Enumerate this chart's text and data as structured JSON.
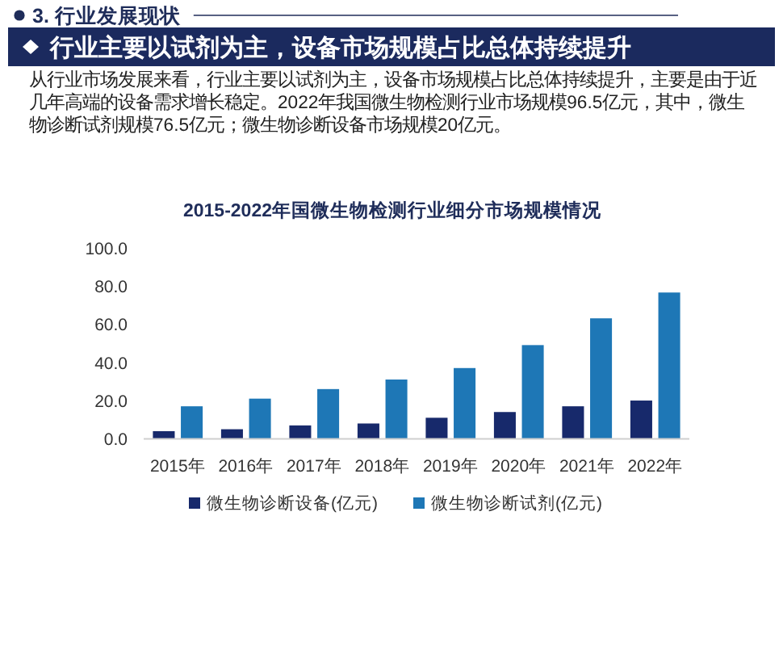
{
  "chart_data": {
    "type": "bar",
    "title": "2015-2022年国微生物检测行业细分市场规模情况",
    "annotations": [
      "3. 行业发展现状",
      "行业主要以试剂为主，设备市场规模占比总体持续提升",
      "从行业市场发展来看，行业主要以试剂为主，设备市场规模占比总体持续提升，主要是由于近几年高端的设备需求增长稳定。2022年我国微生物检测行业市场规模96.5亿元，其中，微生物诊断试剂规模76.5亿元；微生物诊断设备市场规模20亿元。"
    ],
    "categories": [
      "2015年",
      "2016年",
      "2017年",
      "2018年",
      "2019年",
      "2020年",
      "2021年",
      "2022年"
    ],
    "series": [
      {
        "name": "微生物诊断设备(亿元)",
        "color": "#17296b",
        "values": [
          4,
          5,
          7,
          8,
          11,
          14,
          17,
          20
        ]
      },
      {
        "name": "微生物诊断试剂(亿元)",
        "color": "#1e77b6",
        "values": [
          17,
          21,
          26,
          31,
          37,
          49,
          63,
          76.5
        ]
      }
    ],
    "ylim": [
      0,
      100
    ],
    "yticks": [
      {
        "value": 0,
        "label": "0.0"
      },
      {
        "value": 20,
        "label": "20.0"
      },
      {
        "value": 40,
        "label": "40.0"
      },
      {
        "value": 60,
        "label": "60.0"
      },
      {
        "value": 80,
        "label": "80.0"
      },
      {
        "value": 100,
        "label": "100.0"
      }
    ],
    "legend": "bottom"
  }
}
